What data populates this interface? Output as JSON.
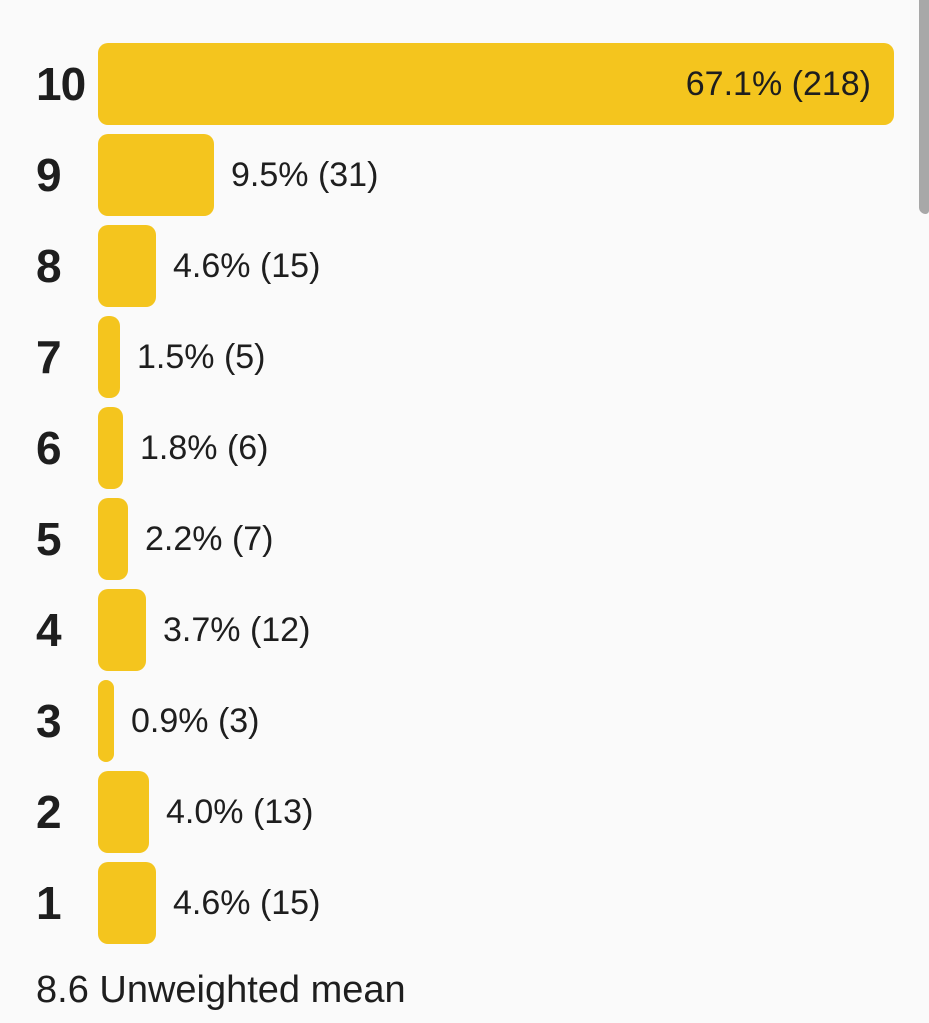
{
  "chart_data": {
    "type": "bar",
    "orientation": "horizontal",
    "title": "",
    "categories": [
      "10",
      "9",
      "8",
      "7",
      "6",
      "5",
      "4",
      "3",
      "2",
      "1"
    ],
    "series": [
      {
        "name": "rating-share",
        "percent": [
          67.1,
          9.5,
          4.6,
          1.5,
          1.8,
          2.2,
          3.7,
          0.9,
          4.0,
          4.6
        ],
        "counts": [
          218,
          31,
          15,
          5,
          6,
          7,
          12,
          3,
          13,
          15
        ]
      }
    ],
    "xlim_percent": [
      0,
      67.1
    ],
    "grid": false,
    "legend": false,
    "rows": [
      {
        "rating": "10",
        "percent": 67.1,
        "count": 218,
        "value_label": "67.1% (218)"
      },
      {
        "rating": "9",
        "percent": 9.5,
        "count": 31,
        "value_label": "9.5% (31)"
      },
      {
        "rating": "8",
        "percent": 4.6,
        "count": 15,
        "value_label": "4.6% (15)"
      },
      {
        "rating": "7",
        "percent": 1.5,
        "count": 5,
        "value_label": "1.5% (5)"
      },
      {
        "rating": "6",
        "percent": 1.8,
        "count": 6,
        "value_label": "1.8% (6)"
      },
      {
        "rating": "5",
        "percent": 2.2,
        "count": 7,
        "value_label": "2.2% (7)"
      },
      {
        "rating": "4",
        "percent": 3.7,
        "count": 12,
        "value_label": "3.7% (12)"
      },
      {
        "rating": "3",
        "percent": 0.9,
        "count": 3,
        "value_label": "0.9% (3)"
      },
      {
        "rating": "2",
        "percent": 4.0,
        "count": 13,
        "value_label": "4.0% (13)"
      },
      {
        "rating": "1",
        "percent": 4.6,
        "count": 15,
        "value_label": "4.6% (15)"
      }
    ]
  },
  "footer": {
    "mean_value": "8.6",
    "mean_label": "Unweighted mean",
    "mean_text": "8.6 Unweighted mean"
  },
  "colors": {
    "bar": "#F4C51E",
    "background": "#FAFAFA",
    "text": "#1E1E1E",
    "scrollbar": "#A8A8A8"
  }
}
